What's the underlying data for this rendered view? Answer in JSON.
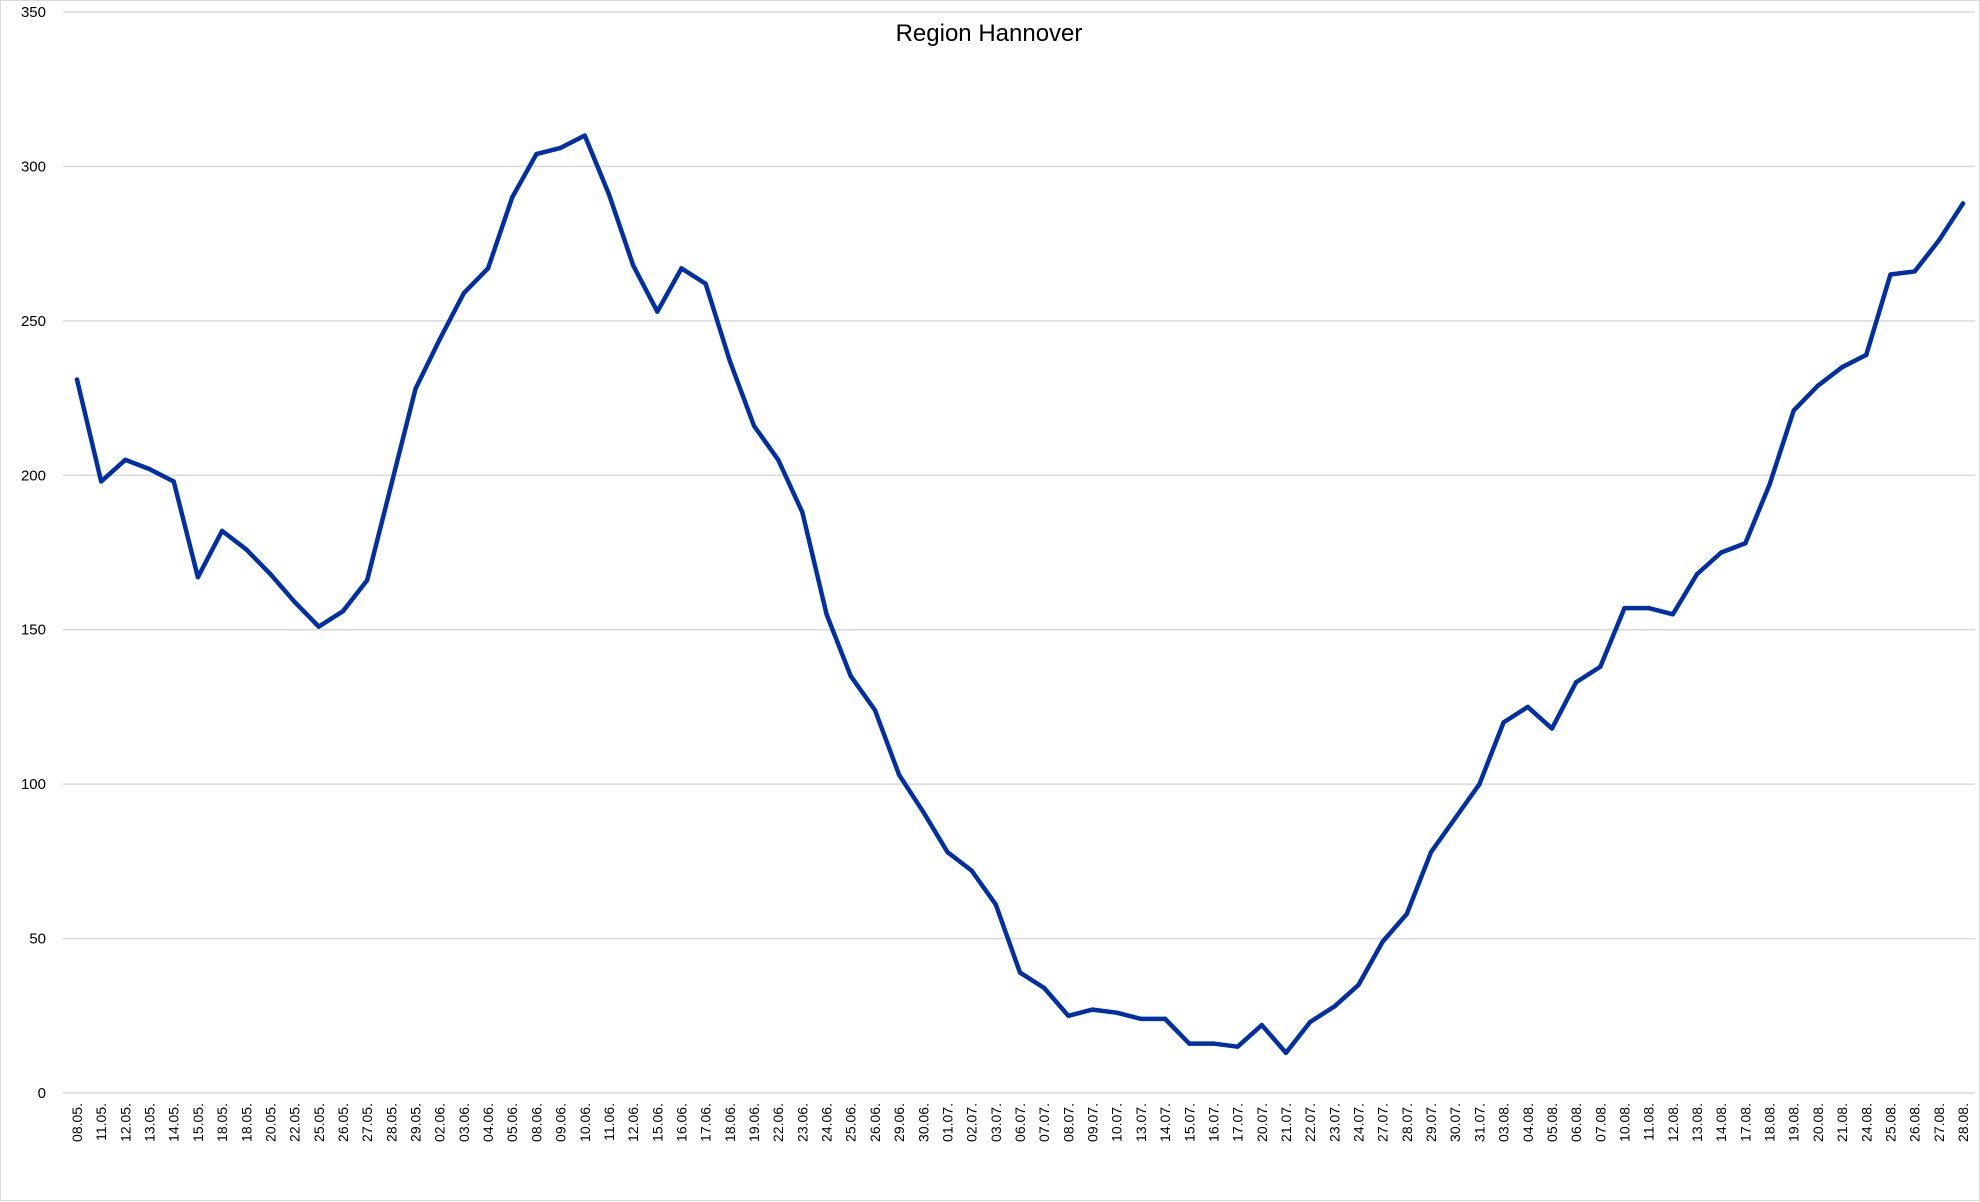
{
  "chart_data": {
    "type": "line",
    "title": "Region Hannover",
    "xlabel": "",
    "ylabel": "",
    "ylim": [
      0,
      350
    ],
    "yticks": [
      0,
      50,
      100,
      150,
      200,
      250,
      300,
      350
    ],
    "grid": true,
    "legend": "none",
    "line_color": "#002FA6",
    "categories": [
      "08.05.",
      "11.05.",
      "12.05.",
      "13.05.",
      "14.05.",
      "15.05.",
      "18.05.",
      "18.05.",
      "20.05.",
      "22.05.",
      "25.05.",
      "26.05.",
      "27.05.",
      "28.05.",
      "29.05.",
      "02.06.",
      "03.06.",
      "04.06.",
      "05.06.",
      "08.06.",
      "09.06.",
      "10.06.",
      "11.06.",
      "12.06.",
      "15.06.",
      "16.06.",
      "17.06.",
      "18.06.",
      "19.06.",
      "22.06.",
      "23.06.",
      "24.06.",
      "25.06.",
      "26.06.",
      "29.06.",
      "30.06.",
      "01.07.",
      "02.07.",
      "03.07.",
      "06.07.",
      "07.07.",
      "08.07.",
      "09.07.",
      "10.07.",
      "13.07.",
      "14.07.",
      "15.07.",
      "16.07.",
      "17.07.",
      "20.07.",
      "21.07.",
      "22.07.",
      "23.07.",
      "24.07.",
      "27.07.",
      "28.07.",
      "29.07.",
      "30.07.",
      "31.07.",
      "03.08.",
      "04.08.",
      "05.08.",
      "06.08.",
      "07.08.",
      "10.08.",
      "11.08.",
      "12.08.",
      "13.08.",
      "14.08.",
      "17.08.",
      "18.08.",
      "19.08.",
      "20.08.",
      "21.08.",
      "24.08.",
      "25.08.",
      "26.08.",
      "27.08.",
      "28.08."
    ],
    "series": [
      {
        "values": [
          231,
          198,
          205,
          202,
          198,
          167,
          182,
          176,
          168,
          159,
          151,
          156,
          166,
          197,
          228,
          244,
          259,
          267,
          290,
          304,
          306,
          310,
          291,
          268,
          253,
          267,
          262,
          237,
          216,
          205,
          188,
          155,
          135,
          124,
          103,
          91,
          78,
          72,
          61,
          39,
          34,
          25,
          27,
          26,
          24,
          24,
          16,
          16,
          15,
          22,
          13,
          23,
          28,
          35,
          49,
          58,
          78,
          89,
          100,
          120,
          125,
          118,
          133,
          138,
          157,
          157,
          155,
          168,
          175,
          178,
          197,
          221,
          229,
          235,
          239,
          265,
          266,
          276,
          288
        ]
      }
    ]
  }
}
